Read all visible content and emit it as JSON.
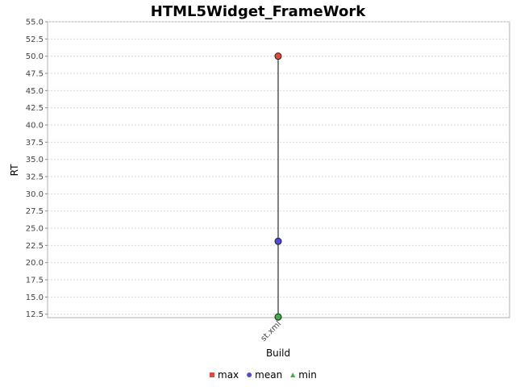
{
  "chart_data": {
    "type": "scatter",
    "title": "HTML5Widget_FrameWork",
    "xlabel": "Build",
    "ylabel": "RT",
    "categories": [
      "st.xml"
    ],
    "ylim": [
      12.0,
      55.0
    ],
    "yticks": [
      12.5,
      15.0,
      17.5,
      20.0,
      22.5,
      25.0,
      27.5,
      30.0,
      32.5,
      35.0,
      37.5,
      40.0,
      42.5,
      45.0,
      47.5,
      50.0,
      52.5,
      55.0
    ],
    "grid": true,
    "legend_position": "bottom",
    "series": [
      {
        "name": "max",
        "values": [
          50.0
        ],
        "color": "#e8453c",
        "marker": "square"
      },
      {
        "name": "mean",
        "values": [
          23.1
        ],
        "color": "#4c4cd8",
        "marker": "circle"
      },
      {
        "name": "min",
        "values": [
          12.1
        ],
        "color": "#3cb043",
        "marker": "triangle"
      }
    ]
  }
}
